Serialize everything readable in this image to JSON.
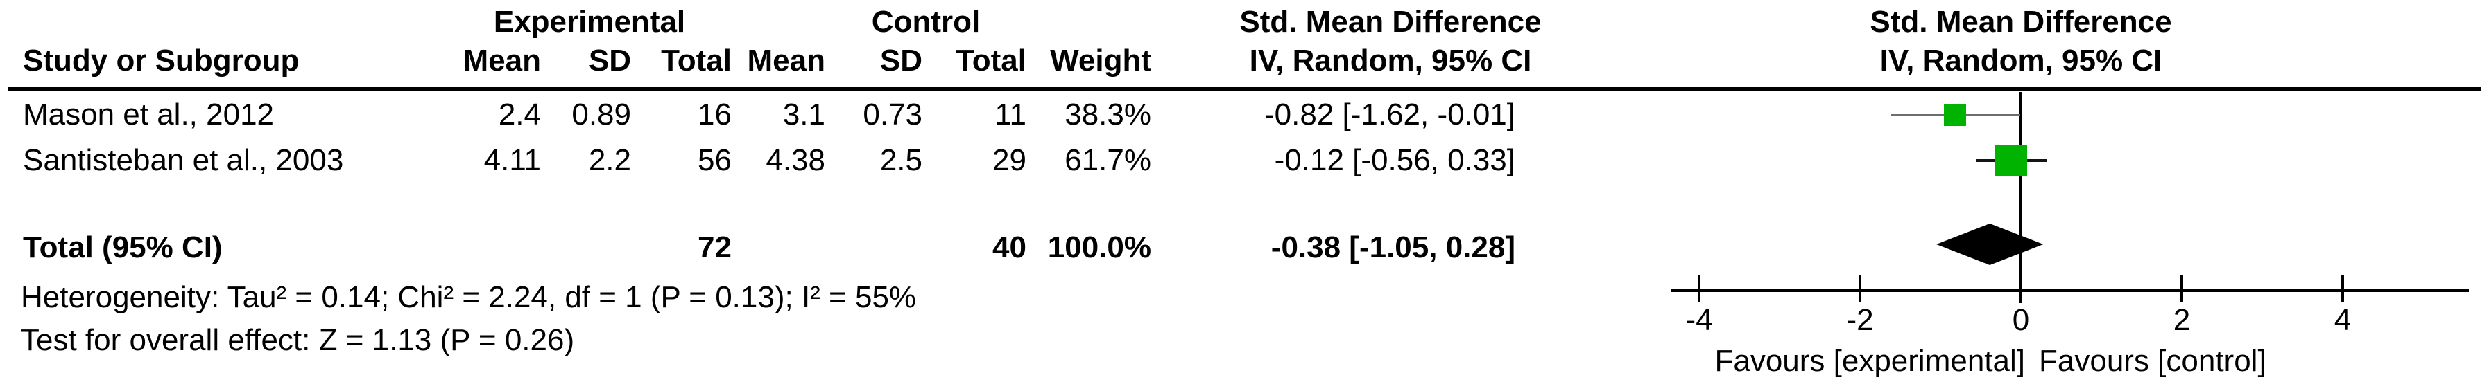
{
  "table": {
    "groups": {
      "experimental": "Experimental",
      "control": "Control",
      "smd_text": "Std. Mean Difference",
      "smd_plot": "Std. Mean Difference"
    },
    "columns": {
      "study": "Study or Subgroup",
      "exp_mean": "Mean",
      "exp_sd": "SD",
      "exp_total": "Total",
      "ctl_mean": "Mean",
      "ctl_sd": "SD",
      "ctl_total": "Total",
      "weight": "Weight",
      "iv_text": "IV, Random, 95% CI",
      "iv_plot": "IV, Random, 95% CI"
    },
    "rows": [
      {
        "study": "Mason et al., 2012",
        "exp_mean": "2.4",
        "exp_sd": "0.89",
        "exp_total": "16",
        "ctl_mean": "3.1",
        "ctl_sd": "0.73",
        "ctl_total": "11",
        "weight": "38.3%",
        "smd_ci": "-0.82 [-1.62, -0.01]"
      },
      {
        "study": "Santisteban et al., 2003",
        "exp_mean": "4.11",
        "exp_sd": "2.2",
        "exp_total": "56",
        "ctl_mean": "4.38",
        "ctl_sd": "2.5",
        "ctl_total": "29",
        "weight": "61.7%",
        "smd_ci": "-0.12 [-0.56, 0.33]"
      }
    ],
    "total": {
      "label": "Total (95% CI)",
      "exp_total": "72",
      "ctl_total": "40",
      "weight": "100.0%",
      "smd_ci": "-0.38 [-1.05, 0.28]"
    },
    "footnotes": {
      "heterogeneity": "Heterogeneity: Tau² = 0.14; Chi² = 2.24, df = 1 (P = 0.13); I² = 55%",
      "overall": "Test for overall effect: Z = 1.13 (P = 0.26)"
    }
  },
  "plot": {
    "tick_labels": [
      "-4",
      "-2",
      "0",
      "2",
      "4"
    ],
    "favours_left": "Favours [experimental]",
    "favours_right": "Favours [control]"
  },
  "colors": {
    "marker_green": "#00b300",
    "diamond": "#000000",
    "ci_line_study1": "#6e6e6e",
    "ci_line_study2": "#141414",
    "zero_line": "#404040",
    "axis": "#000000"
  },
  "chart_data": {
    "type": "scatter",
    "variant": "forest_plot",
    "effect_measure": "Std. Mean Difference",
    "model": "IV, Random, 95% CI",
    "studies": [
      {
        "name": "Mason et al., 2012",
        "experimental": {
          "mean": 2.4,
          "sd": 0.89,
          "total": 16
        },
        "control": {
          "mean": 3.1,
          "sd": 0.73,
          "total": 11
        },
        "weight_pct": 38.3,
        "smd": -0.82,
        "ci": [
          -1.62,
          -0.01
        ]
      },
      {
        "name": "Santisteban et al., 2003",
        "experimental": {
          "mean": 4.11,
          "sd": 2.2,
          "total": 56
        },
        "control": {
          "mean": 4.38,
          "sd": 2.5,
          "total": 29
        },
        "weight_pct": 61.7,
        "smd": -0.12,
        "ci": [
          -0.56,
          0.33
        ]
      }
    ],
    "total": {
      "exp_total": 72,
      "ctl_total": 40,
      "weight_pct": 100.0,
      "smd": -0.38,
      "ci": [
        -1.05,
        0.28
      ]
    },
    "heterogeneity": {
      "tau2": 0.14,
      "chi2": 2.24,
      "df": 1,
      "p": 0.13,
      "i2_pct": 55
    },
    "overall_effect": {
      "z": 1.13,
      "p": 0.26
    },
    "axis": {
      "ticks": [
        -4,
        -2,
        0,
        2,
        4
      ],
      "xlim": [
        -4.35,
        5.55
      ],
      "grid": false
    },
    "favours": [
      "Favours [experimental]",
      "Favours [control]"
    ]
  }
}
